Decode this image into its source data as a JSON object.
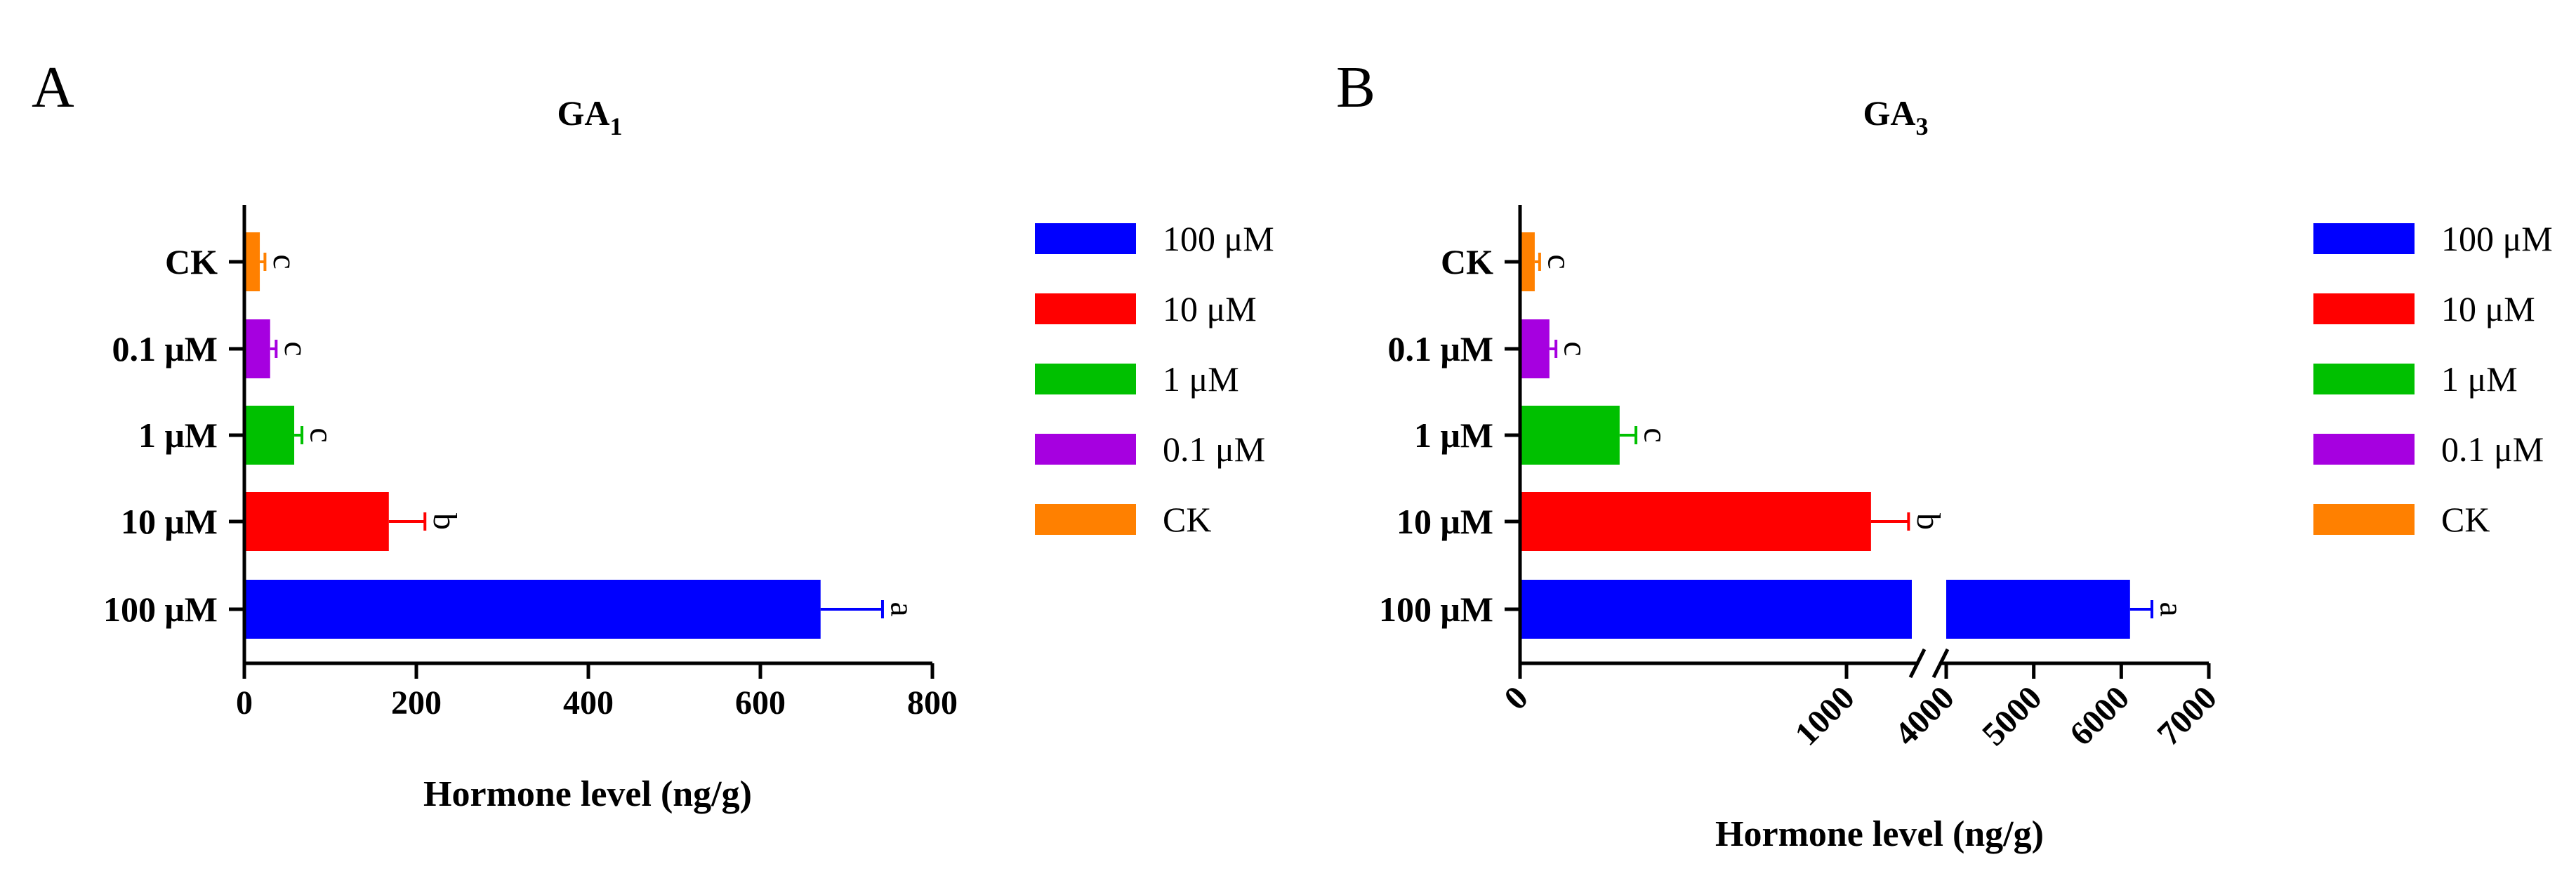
{
  "panels": [
    {
      "letter": "A"
    },
    {
      "letter": "B"
    }
  ],
  "legend_items": [
    {
      "label": "100 μM",
      "color": "#0000ff"
    },
    {
      "label": "10 μM",
      "color": "#ff0000"
    },
    {
      "label": "1 μM",
      "color": "#00c000"
    },
    {
      "label": "0.1 μM",
      "color": "#a600e0"
    },
    {
      "label": "CK",
      "color": "#ff8000"
    }
  ],
  "chart_data": [
    {
      "type": "bar",
      "orientation": "horizontal",
      "title_main": "GA",
      "title_sub": "1",
      "categories": [
        "CK",
        "0.1 μM",
        "1 μM",
        "10 μM",
        "100 μM"
      ],
      "values": [
        18,
        30,
        58,
        168,
        670
      ],
      "errors": [
        6,
        7,
        9,
        42,
        72
      ],
      "significance": [
        "c",
        "c",
        "c",
        "b",
        "a"
      ],
      "colors": [
        "#ff8000",
        "#a600e0",
        "#00c000",
        "#ff0000",
        "#0000ff"
      ],
      "xlabel": "Hormone level (ng/g)",
      "xlim": [
        0,
        800
      ],
      "xticks": [
        "0",
        "200",
        "400",
        "600",
        "800"
      ],
      "axis_break": false,
      "legend_position": "right"
    },
    {
      "type": "bar",
      "orientation": "horizontal",
      "title_main": "GA",
      "title_sub": "3",
      "categories": [
        "CK",
        "0.1 μM",
        "1 μM",
        "10 μM",
        "100 μM"
      ],
      "values": [
        45,
        90,
        305,
        1075,
        6100
      ],
      "errors": [
        15,
        20,
        50,
        115,
        250
      ],
      "significance": [
        "c",
        "c",
        "c",
        "b",
        "a"
      ],
      "colors": [
        "#ff8000",
        "#a600e0",
        "#00c000",
        "#ff0000",
        "#0000ff"
      ],
      "xlabel": "Hormone level (ng/g)",
      "axis_break": true,
      "segments": [
        {
          "range": [
            0,
            1200
          ],
          "ticks": [
            "0",
            "1000"
          ]
        },
        {
          "range": [
            4000,
            7000
          ],
          "ticks": [
            "4000",
            "5000",
            "6000",
            "7000"
          ]
        }
      ],
      "legend_position": "right"
    }
  ]
}
